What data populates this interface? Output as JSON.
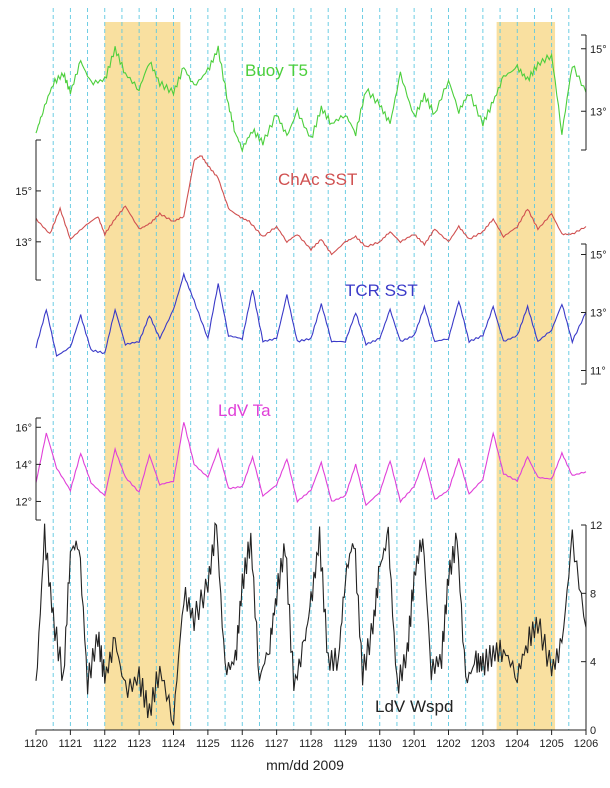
{
  "chart_data": {
    "type": "line",
    "xlabel": "mm/dd 2009",
    "x_ticks": [
      "1120",
      "1121",
      "1122",
      "1123",
      "1124",
      "1125",
      "1126",
      "1127",
      "1128",
      "1129",
      "1130",
      "1201",
      "1202",
      "1203",
      "1204",
      "1205",
      "1206"
    ],
    "highlight_ranges": [
      [
        2.0,
        4.2
      ],
      [
        13.4,
        15.1
      ]
    ],
    "highlight_color": "#f9e0a0",
    "grid": "dashed vertical lines every 0.5 day (light blue)",
    "grid_color": "#5ec8e0",
    "series": [
      {
        "name": "Buoy T5",
        "color": "#4ccf3c",
        "axis": "right",
        "ylim": [
          11.6,
          15.6
        ],
        "y_ticks": [
          "15°",
          "13°"
        ],
        "tick_values": [
          15,
          13
        ],
        "x": [
          0.0,
          0.2,
          0.5,
          0.8,
          1.0,
          1.3,
          1.6,
          2.0,
          2.3,
          2.6,
          3.0,
          3.3,
          3.6,
          4.0,
          4.3,
          4.6,
          5.0,
          5.3,
          5.6,
          5.8,
          6.0,
          6.3,
          6.6,
          7.0,
          7.3,
          7.6,
          8.0,
          8.3,
          8.6,
          9.0,
          9.3,
          9.6,
          10.0,
          10.3,
          10.6,
          11.0,
          11.3,
          11.6,
          12.0,
          12.3,
          12.6,
          13.0,
          13.3,
          13.6,
          14.0,
          14.3,
          14.6,
          15.0,
          15.3,
          15.6,
          16.0
        ],
        "values": [
          12.3,
          13.0,
          13.9,
          14.2,
          13.6,
          14.6,
          13.9,
          14.0,
          15.0,
          14.2,
          13.7,
          14.6,
          13.9,
          13.6,
          14.4,
          13.8,
          14.3,
          15.0,
          13.2,
          12.3,
          11.8,
          12.4,
          12.0,
          12.9,
          12.2,
          13.0,
          12.1,
          13.1,
          12.6,
          12.9,
          12.3,
          13.7,
          13.2,
          12.6,
          14.2,
          12.8,
          13.5,
          12.9,
          14.0,
          13.0,
          13.6,
          12.6,
          13.3,
          14.1,
          14.4,
          14.0,
          14.5,
          14.8,
          12.3,
          14.5,
          13.6
        ]
      },
      {
        "name": "ChAc SST",
        "color": "#d05050",
        "axis": "left",
        "ylim": [
          11.5,
          17.0
        ],
        "y_ticks": [
          "15°",
          "13°"
        ],
        "tick_values": [
          15,
          13
        ],
        "x": [
          0.0,
          0.4,
          0.7,
          1.0,
          1.4,
          1.8,
          2.0,
          2.3,
          2.6,
          3.0,
          3.3,
          3.6,
          4.0,
          4.3,
          4.6,
          4.8,
          5.0,
          5.3,
          5.6,
          5.9,
          6.2,
          6.6,
          7.0,
          7.3,
          7.6,
          8.0,
          8.3,
          8.6,
          9.0,
          9.3,
          9.6,
          10.0,
          10.3,
          10.6,
          11.0,
          11.3,
          11.6,
          12.0,
          12.3,
          12.6,
          13.0,
          13.3,
          13.6,
          14.0,
          14.3,
          14.6,
          15.0,
          15.3,
          15.6,
          16.0
        ],
        "values": [
          13.9,
          13.3,
          14.3,
          13.1,
          13.6,
          14.0,
          13.3,
          13.9,
          14.4,
          13.5,
          13.7,
          14.1,
          13.8,
          14.0,
          16.2,
          16.4,
          16.0,
          15.5,
          14.3,
          14.0,
          13.8,
          13.2,
          13.6,
          13.0,
          13.3,
          12.7,
          13.1,
          12.5,
          13.0,
          13.2,
          12.8,
          13.0,
          13.4,
          13.0,
          13.3,
          12.9,
          13.5,
          13.0,
          13.6,
          13.1,
          13.4,
          13.9,
          13.2,
          13.6,
          14.3,
          13.5,
          14.1,
          13.3,
          13.3,
          13.6
        ]
      },
      {
        "name": "TCR SST",
        "color": "#3a3ac8",
        "axis": "right",
        "ylim": [
          10.5,
          15.5
        ],
        "y_ticks": [
          "15°",
          "13°",
          "11°"
        ],
        "tick_values": [
          15,
          13,
          11
        ],
        "x": [
          0.0,
          0.3,
          0.6,
          1.0,
          1.3,
          1.6,
          2.0,
          2.3,
          2.6,
          3.0,
          3.3,
          3.6,
          4.0,
          4.3,
          4.6,
          5.0,
          5.3,
          5.6,
          6.0,
          6.3,
          6.6,
          7.0,
          7.3,
          7.6,
          8.0,
          8.3,
          8.6,
          9.0,
          9.3,
          9.6,
          10.0,
          10.3,
          10.6,
          11.0,
          11.3,
          11.6,
          12.0,
          12.3,
          12.6,
          13.0,
          13.3,
          13.6,
          14.0,
          14.3,
          14.6,
          15.0,
          15.3,
          15.6,
          16.0
        ],
        "values": [
          11.8,
          13.1,
          11.5,
          11.8,
          12.9,
          11.7,
          11.6,
          13.1,
          11.9,
          12.0,
          12.9,
          12.1,
          13.1,
          14.3,
          13.4,
          12.1,
          14.0,
          12.2,
          12.1,
          13.8,
          12.0,
          12.1,
          13.6,
          12.0,
          12.1,
          13.3,
          12.0,
          12.0,
          13.0,
          11.9,
          12.1,
          13.1,
          12.0,
          12.2,
          13.2,
          12.0,
          12.1,
          13.4,
          12.0,
          12.2,
          13.2,
          12.0,
          12.2,
          13.2,
          12.0,
          12.4,
          13.3,
          12.0,
          13.0
        ]
      },
      {
        "name": "LdV Ta",
        "color": "#e040d8",
        "axis": "left",
        "ylim": [
          11.0,
          16.5
        ],
        "y_ticks": [
          "16°",
          "14°",
          "12°"
        ],
        "tick_values": [
          16,
          14,
          12
        ],
        "x": [
          0.0,
          0.3,
          0.6,
          1.0,
          1.3,
          1.6,
          2.0,
          2.3,
          2.6,
          3.0,
          3.3,
          3.6,
          4.0,
          4.3,
          4.6,
          5.0,
          5.3,
          5.6,
          6.0,
          6.3,
          6.6,
          7.0,
          7.3,
          7.6,
          8.0,
          8.3,
          8.6,
          9.0,
          9.3,
          9.6,
          10.0,
          10.3,
          10.6,
          11.0,
          11.3,
          11.6,
          12.0,
          12.3,
          12.6,
          13.0,
          13.3,
          13.6,
          14.0,
          14.3,
          14.6,
          15.0,
          15.3,
          15.6,
          16.0
        ],
        "values": [
          13.0,
          15.7,
          13.8,
          12.6,
          14.6,
          13.0,
          12.3,
          14.8,
          13.3,
          12.5,
          14.5,
          12.9,
          13.1,
          16.3,
          14.0,
          13.3,
          14.8,
          12.7,
          12.8,
          14.4,
          12.3,
          12.9,
          14.3,
          12.0,
          12.6,
          14.1,
          12.0,
          12.3,
          14.0,
          11.8,
          12.5,
          14.2,
          12.0,
          12.8,
          14.3,
          12.1,
          12.6,
          14.3,
          12.4,
          13.2,
          15.7,
          13.5,
          13.1,
          14.4,
          13.3,
          13.2,
          14.6,
          13.4,
          13.6
        ]
      },
      {
        "name": "LdV Wspd",
        "color": "#222222",
        "axis": "right",
        "ylim": [
          0,
          12
        ],
        "y_ticks": [
          "12",
          "8",
          "4",
          "0"
        ],
        "tick_values": [
          12,
          8,
          4,
          0
        ],
        "x": [
          0.0,
          0.25,
          0.5,
          0.8,
          1.0,
          1.25,
          1.5,
          1.8,
          2.0,
          2.3,
          2.6,
          3.0,
          3.3,
          3.6,
          4.0,
          4.3,
          4.6,
          5.0,
          5.25,
          5.5,
          5.8,
          6.0,
          6.25,
          6.5,
          6.8,
          7.0,
          7.25,
          7.5,
          7.8,
          8.0,
          8.25,
          8.5,
          8.8,
          9.0,
          9.25,
          9.5,
          9.8,
          10.0,
          10.25,
          10.5,
          10.8,
          11.0,
          11.25,
          11.5,
          11.8,
          12.0,
          12.25,
          12.5,
          12.8,
          13.0,
          13.3,
          13.6,
          14.0,
          14.3,
          14.6,
          15.0,
          15.3,
          15.6,
          16.0
        ],
        "values": [
          2.5,
          11.4,
          6.5,
          3.0,
          10.5,
          11.0,
          2.8,
          5.5,
          3.0,
          5.2,
          2.3,
          3.0,
          1.0,
          3.6,
          0.6,
          8.0,
          6.5,
          8.5,
          12.0,
          3.5,
          4.0,
          8.5,
          11.2,
          3.0,
          5.0,
          8.0,
          10.8,
          2.5,
          5.0,
          7.5,
          11.2,
          4.0,
          4.2,
          9.0,
          11.3,
          3.3,
          6.0,
          9.5,
          11.4,
          2.5,
          4.5,
          9.0,
          11.4,
          3.5,
          4.3,
          9.0,
          11.2,
          2.8,
          4.0,
          3.8,
          4.5,
          4.7,
          3.2,
          5.2,
          6.3,
          3.5,
          5.0,
          11.2,
          6.0
        ]
      }
    ]
  }
}
